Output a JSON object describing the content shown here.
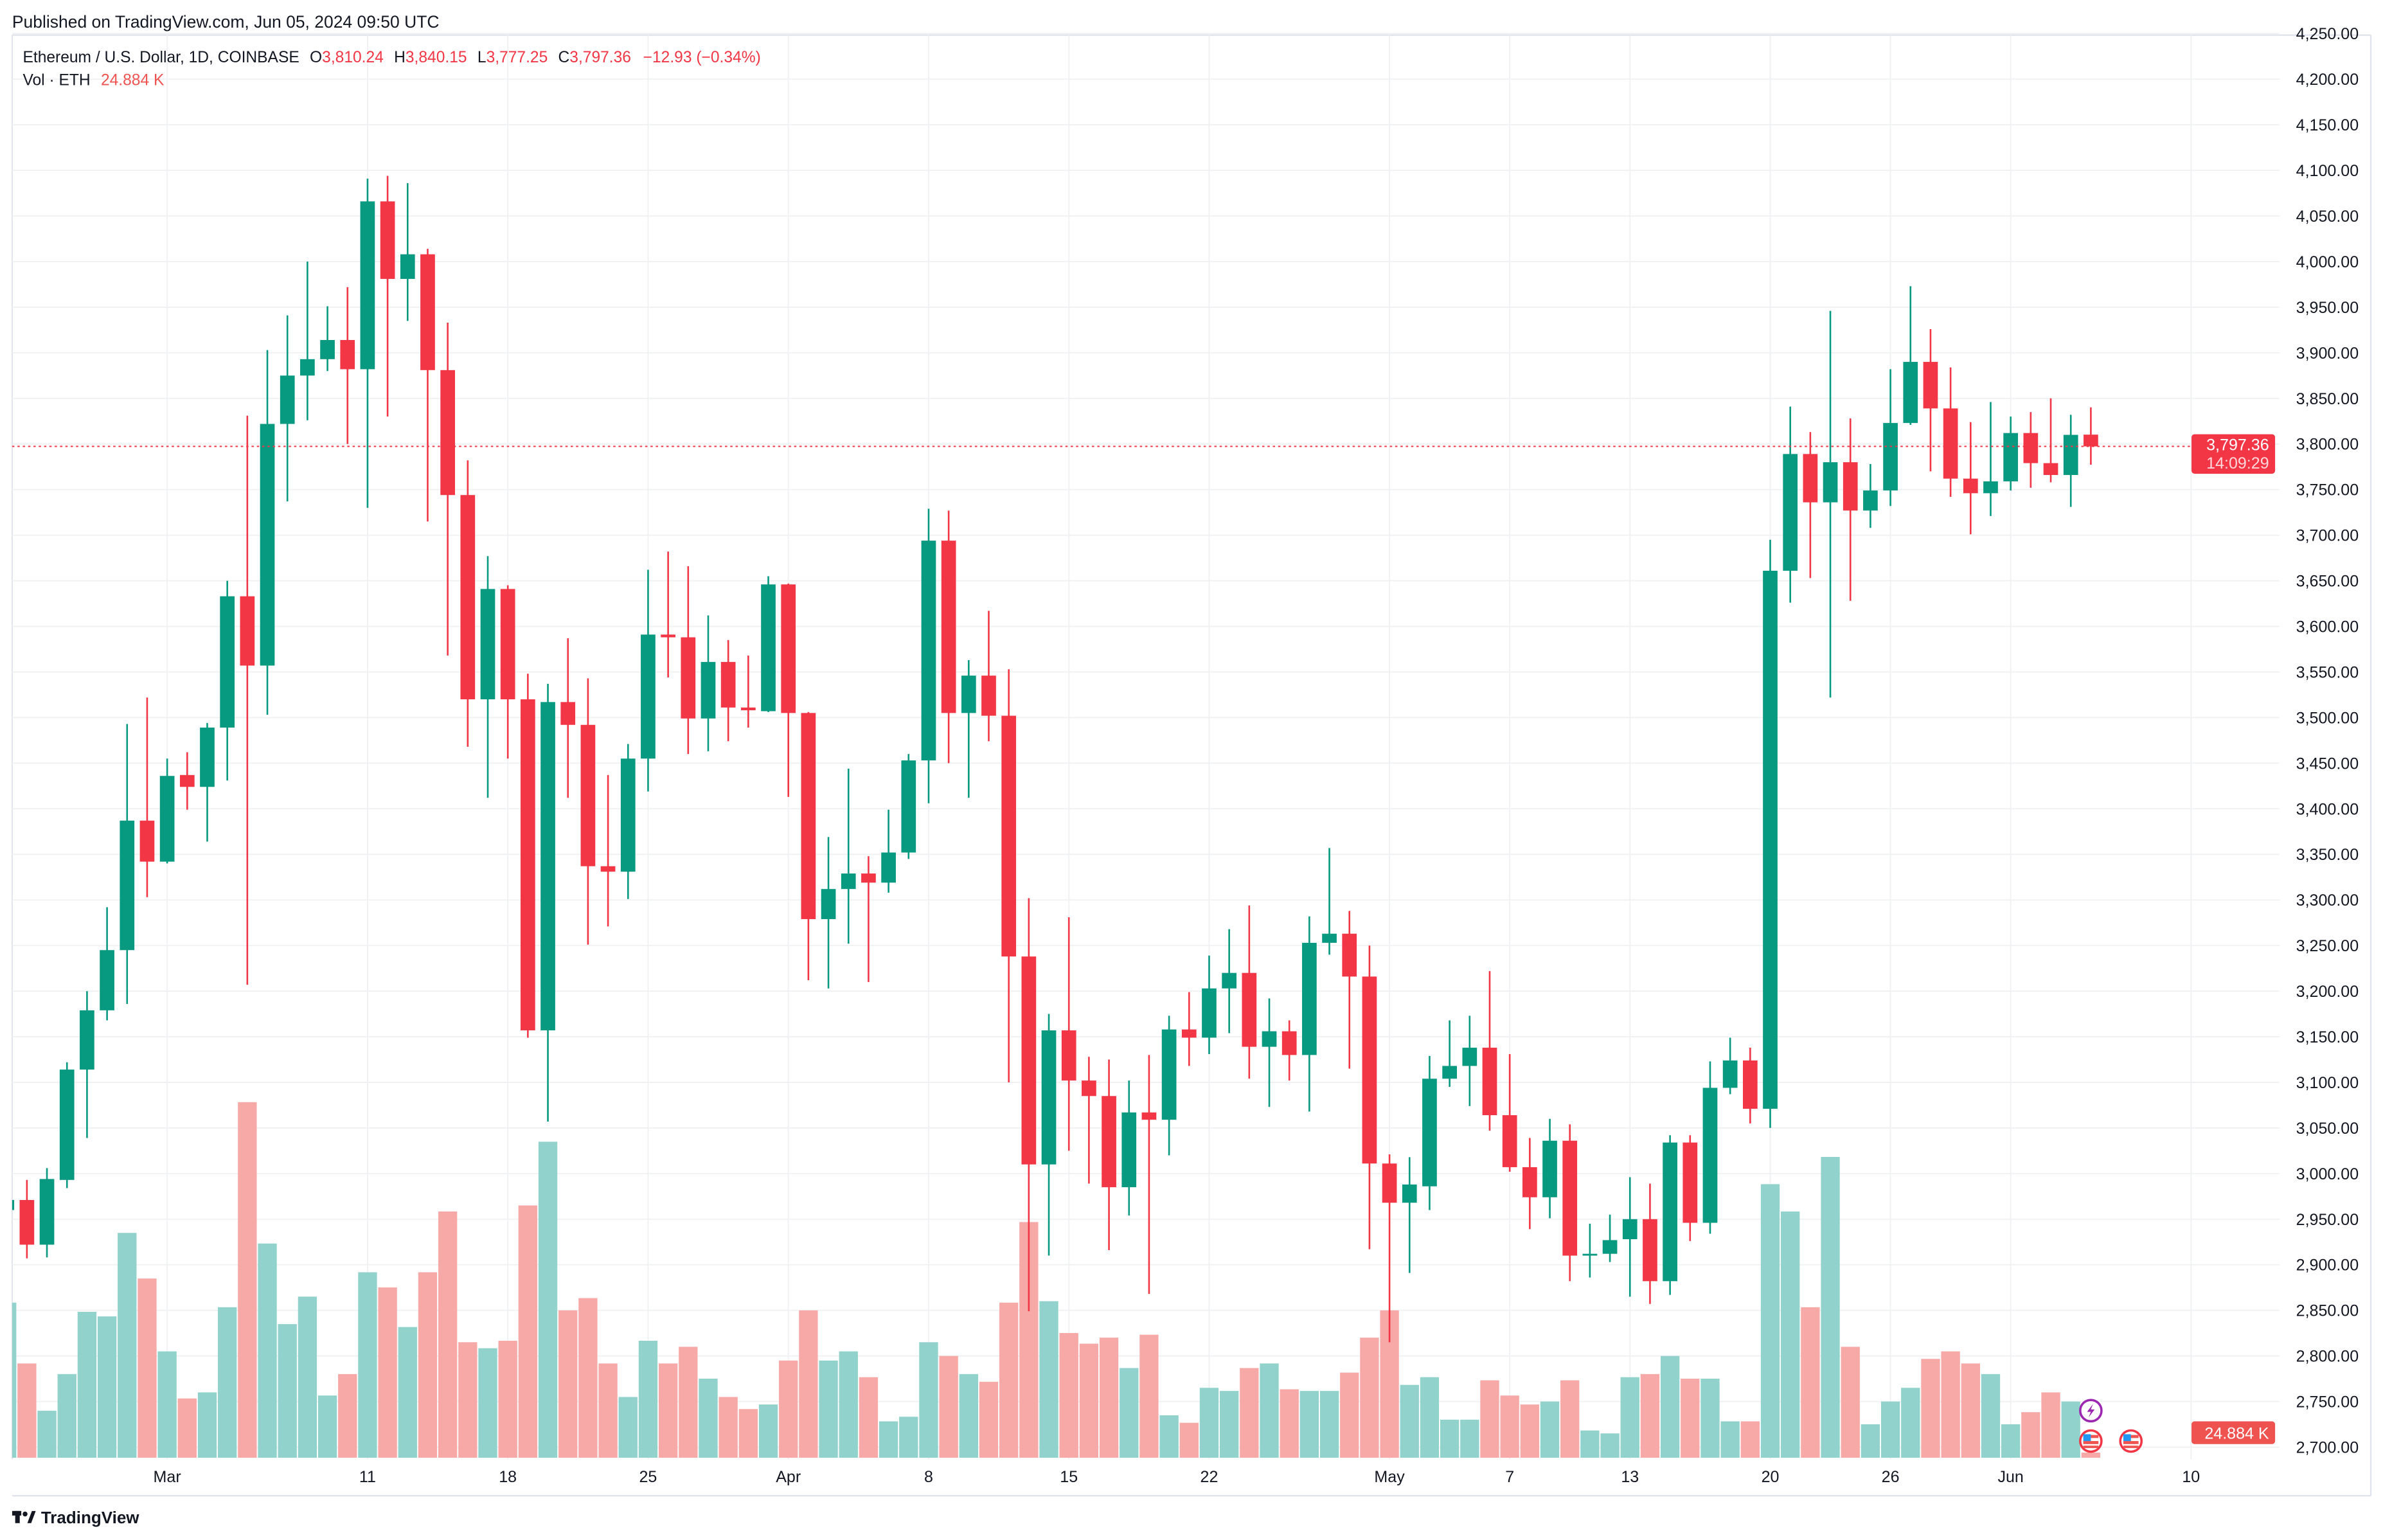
{
  "header": {
    "published": "Published on TradingView.com, Jun 05, 2024 09:50 UTC"
  },
  "legend": {
    "symbol": "Ethereum / U.S. Dollar, 1D, COINBASE",
    "o_label": "O",
    "o_value": "3,810.24",
    "h_label": "H",
    "h_value": "3,840.15",
    "l_label": "L",
    "l_value": "3,777.25",
    "c_label": "C",
    "c_value": "3,797.36",
    "change": "−12.93 (−0.34%)",
    "vol_label": "Vol · ETH",
    "vol_value": "24.884 K"
  },
  "price_tag": {
    "price": "3,797.36",
    "countdown": "14:09:29"
  },
  "volume_tag": {
    "value": "24.884 K"
  },
  "footer": {
    "logo_text": "TradingView"
  },
  "colors": {
    "up": "#089981",
    "down": "#f23645",
    "up_volume": "#92d2cc",
    "down_volume": "#f7a9a7",
    "volume_tag": "#ef5350",
    "event_icon": "#9c27b0"
  },
  "events": [
    {
      "icon": "lightning-icon",
      "date": "2024-06-05",
      "row": 0
    },
    {
      "icon": "us-flag-icon",
      "date": "2024-06-05",
      "row": 1
    },
    {
      "icon": "us-flag-icon",
      "date": "2024-06-07",
      "row": 1
    }
  ],
  "chart_data": {
    "type": "candlestick",
    "title": "Ethereum / U.S. Dollar, 1D, COINBASE",
    "ylim": [
      2700,
      4250
    ],
    "grid": true,
    "current_price": 3797.36,
    "y_ticks": [
      "4,250.00",
      "4,200.00",
      "4,150.00",
      "4,100.00",
      "4,050.00",
      "4,000.00",
      "3,950.00",
      "3,900.00",
      "3,850.00",
      "3,800.00",
      "3,750.00",
      "3,700.00",
      "3,650.00",
      "3,600.00",
      "3,550.00",
      "3,500.00",
      "3,450.00",
      "3,400.00",
      "3,350.00",
      "3,300.00",
      "3,250.00",
      "3,200.00",
      "3,150.00",
      "3,100.00",
      "3,050.00",
      "3,000.00",
      "2,950.00",
      "2,900.00",
      "2,850.00",
      "2,800.00",
      "2,750.00",
      "2,700.00"
    ],
    "x_ticks": [
      {
        "label": "Mar",
        "date": "2024-03-01"
      },
      {
        "label": "11",
        "date": "2024-03-11"
      },
      {
        "label": "18",
        "date": "2024-03-18"
      },
      {
        "label": "25",
        "date": "2024-03-25"
      },
      {
        "label": "Apr",
        "date": "2024-04-01"
      },
      {
        "label": "8",
        "date": "2024-04-08"
      },
      {
        "label": "15",
        "date": "2024-04-15"
      },
      {
        "label": "22",
        "date": "2024-04-22"
      },
      {
        "label": "May",
        "date": "2024-05-01"
      },
      {
        "label": "7",
        "date": "2024-05-07"
      },
      {
        "label": "13",
        "date": "2024-05-13"
      },
      {
        "label": "20",
        "date": "2024-05-20"
      },
      {
        "label": "26",
        "date": "2024-05-26"
      },
      {
        "label": "Jun",
        "date": "2024-06-01"
      },
      {
        "label": "10",
        "date": "2024-06-10"
      }
    ],
    "columns": [
      "date",
      "open",
      "high",
      "low",
      "close",
      "volume_k"
    ],
    "candles": [
      [
        "2024-02-22",
        2960,
        2990,
        2935,
        2971,
        745
      ],
      [
        "2024-02-23",
        2971,
        2993,
        2907,
        2922,
        453
      ],
      [
        "2024-02-24",
        2922,
        3006,
        2908,
        2994,
        226
      ],
      [
        "2024-02-25",
        2993,
        3122,
        2984,
        3114,
        402
      ],
      [
        "2024-02-26",
        3114,
        3200,
        3039,
        3179,
        701
      ],
      [
        "2024-02-27",
        3179,
        3292,
        3168,
        3245,
        679
      ],
      [
        "2024-02-28",
        3245,
        3493,
        3186,
        3387,
        1080
      ],
      [
        "2024-02-29",
        3387,
        3522,
        3303,
        3342,
        861
      ],
      [
        "2024-03-01",
        3342,
        3455,
        3340,
        3436,
        511
      ],
      [
        "2024-03-02",
        3437,
        3462,
        3399,
        3424,
        285
      ],
      [
        "2024-03-03",
        3424,
        3494,
        3364,
        3489,
        314
      ],
      [
        "2024-03-04",
        3489,
        3650,
        3431,
        3633,
        723
      ],
      [
        "2024-03-05",
        3633,
        3831,
        3207,
        3557,
        1708
      ],
      [
        "2024-03-06",
        3557,
        3903,
        3503,
        3822,
        1029
      ],
      [
        "2024-03-07",
        3822,
        3941,
        3737,
        3875,
        642
      ],
      [
        "2024-03-08",
        3875,
        4000,
        3826,
        3893,
        774
      ],
      [
        "2024-03-09",
        3893,
        3951,
        3880,
        3914,
        299
      ],
      [
        "2024-03-10",
        3914,
        3972,
        3800,
        3882,
        402
      ],
      [
        "2024-03-11",
        3882,
        4091,
        3730,
        4066,
        891
      ],
      [
        "2024-03-12",
        4066,
        4094,
        3830,
        3981,
        818
      ],
      [
        "2024-03-13",
        3981,
        4086,
        3935,
        4008,
        628
      ],
      [
        "2024-03-14",
        4008,
        4014,
        3715,
        3881,
        891
      ],
      [
        "2024-03-15",
        3881,
        3933,
        3568,
        3744,
        1183
      ],
      [
        "2024-03-16",
        3744,
        3782,
        3468,
        3520,
        555
      ],
      [
        "2024-03-17",
        3520,
        3677,
        3412,
        3641,
        526
      ],
      [
        "2024-03-18",
        3641,
        3645,
        3455,
        3520,
        562
      ],
      [
        "2024-03-19",
        3520,
        3548,
        3149,
        3157,
        1212
      ],
      [
        "2024-03-20",
        3157,
        3537,
        3057,
        3517,
        1518
      ],
      [
        "2024-03-21",
        3517,
        3587,
        3412,
        3492,
        708
      ],
      [
        "2024-03-22",
        3492,
        3543,
        3251,
        3337,
        767
      ],
      [
        "2024-03-23",
        3337,
        3437,
        3271,
        3331,
        453
      ],
      [
        "2024-03-24",
        3331,
        3471,
        3301,
        3455,
        292
      ],
      [
        "2024-03-25",
        3455,
        3662,
        3419,
        3591,
        562
      ],
      [
        "2024-03-26",
        3591,
        3682,
        3544,
        3588,
        453
      ],
      [
        "2024-03-27",
        3588,
        3666,
        3460,
        3499,
        533
      ],
      [
        "2024-03-28",
        3499,
        3612,
        3463,
        3561,
        380
      ],
      [
        "2024-03-29",
        3561,
        3585,
        3474,
        3511,
        292
      ],
      [
        "2024-03-30",
        3511,
        3568,
        3489,
        3508,
        234
      ],
      [
        "2024-03-31",
        3507,
        3655,
        3506,
        3646,
        256
      ],
      [
        "2024-04-01",
        3646,
        3647,
        3413,
        3505,
        467
      ],
      [
        "2024-04-02",
        3505,
        3506,
        3212,
        3279,
        708
      ],
      [
        "2024-04-03",
        3279,
        3369,
        3203,
        3312,
        467
      ],
      [
        "2024-04-04",
        3312,
        3444,
        3252,
        3329,
        511
      ],
      [
        "2024-04-05",
        3329,
        3348,
        3210,
        3319,
        387
      ],
      [
        "2024-04-06",
        3319,
        3399,
        3308,
        3352,
        175
      ],
      [
        "2024-04-07",
        3352,
        3460,
        3345,
        3453,
        197
      ],
      [
        "2024-04-08",
        3453,
        3729,
        3406,
        3694,
        555
      ],
      [
        "2024-04-09",
        3694,
        3727,
        3450,
        3505,
        489
      ],
      [
        "2024-04-10",
        3505,
        3563,
        3412,
        3546,
        402
      ],
      [
        "2024-04-11",
        3546,
        3617,
        3474,
        3502,
        365
      ],
      [
        "2024-04-12",
        3502,
        3553,
        3100,
        3238,
        745
      ],
      [
        "2024-04-13",
        3238,
        3302,
        2849,
        3010,
        1132
      ],
      [
        "2024-04-14",
        3010,
        3175,
        2910,
        3157,
        752
      ],
      [
        "2024-04-15",
        3157,
        3281,
        3025,
        3102,
        599
      ],
      [
        "2024-04-16",
        3102,
        3128,
        2989,
        3085,
        548
      ],
      [
        "2024-04-17",
        3085,
        3125,
        2916,
        2985,
        577
      ],
      [
        "2024-04-18",
        2985,
        3102,
        2954,
        3067,
        431
      ],
      [
        "2024-04-19",
        3067,
        3130,
        2868,
        3059,
        591
      ],
      [
        "2024-04-20",
        3059,
        3173,
        3020,
        3158,
        204
      ],
      [
        "2024-04-21",
        3158,
        3199,
        3118,
        3149,
        168
      ],
      [
        "2024-04-22",
        3149,
        3239,
        3131,
        3203,
        336
      ],
      [
        "2024-04-23",
        3203,
        3268,
        3154,
        3220,
        321
      ],
      [
        "2024-04-24",
        3220,
        3294,
        3104,
        3139,
        431
      ],
      [
        "2024-04-25",
        3139,
        3192,
        3073,
        3156,
        453
      ],
      [
        "2024-04-26",
        3156,
        3168,
        3102,
        3130,
        329
      ],
      [
        "2024-04-27",
        3130,
        3282,
        3068,
        3253,
        321
      ],
      [
        "2024-04-28",
        3253,
        3357,
        3240,
        3263,
        321
      ],
      [
        "2024-04-29",
        3263,
        3288,
        3115,
        3216,
        409
      ],
      [
        "2024-04-30",
        3216,
        3250,
        2917,
        3011,
        577
      ],
      [
        "2024-05-01",
        3011,
        3021,
        2815,
        2968,
        708
      ],
      [
        "2024-05-02",
        2968,
        3018,
        2891,
        2988,
        350
      ],
      [
        "2024-05-03",
        2986,
        3129,
        2960,
        3104,
        387
      ],
      [
        "2024-05-04",
        3104,
        3168,
        3095,
        3118,
        183
      ],
      [
        "2024-05-05",
        3118,
        3173,
        3074,
        3138,
        183
      ],
      [
        "2024-05-06",
        3138,
        3222,
        3047,
        3064,
        372
      ],
      [
        "2024-05-07",
        3064,
        3131,
        3002,
        3007,
        299
      ],
      [
        "2024-05-08",
        3007,
        3039,
        2939,
        2974,
        256
      ],
      [
        "2024-05-09",
        2974,
        3060,
        2951,
        3036,
        270
      ],
      [
        "2024-05-10",
        3036,
        3054,
        2882,
        2910,
        372
      ],
      [
        "2024-05-11",
        2910,
        2945,
        2886,
        2912,
        131
      ],
      [
        "2024-05-12",
        2912,
        2955,
        2903,
        2927,
        117
      ],
      [
        "2024-05-13",
        2928,
        2996,
        2865,
        2950,
        387
      ],
      [
        "2024-05-14",
        2950,
        2989,
        2857,
        2882,
        402
      ],
      [
        "2024-05-15",
        2882,
        3042,
        2867,
        3034,
        489
      ],
      [
        "2024-05-16",
        3034,
        3042,
        2926,
        2946,
        380
      ],
      [
        "2024-05-17",
        2946,
        3123,
        2934,
        3094,
        380
      ],
      [
        "2024-05-18",
        3094,
        3149,
        3087,
        3124,
        175
      ],
      [
        "2024-05-19",
        3124,
        3138,
        3055,
        3071,
        175
      ],
      [
        "2024-05-20",
        3071,
        3695,
        3050,
        3661,
        1314
      ],
      [
        "2024-05-21",
        3661,
        3841,
        3626,
        3789,
        1183
      ],
      [
        "2024-05-22",
        3789,
        3813,
        3653,
        3736,
        723
      ],
      [
        "2024-05-23",
        3736,
        3946,
        3522,
        3780,
        1445
      ],
      [
        "2024-05-24",
        3780,
        3828,
        3628,
        3727,
        533
      ],
      [
        "2024-05-25",
        3727,
        3778,
        3708,
        3749,
        161
      ],
      [
        "2024-05-26",
        3749,
        3882,
        3732,
        3823,
        270
      ],
      [
        "2024-05-27",
        3823,
        3973,
        3821,
        3890,
        336
      ],
      [
        "2024-05-28",
        3890,
        3926,
        3770,
        3839,
        475
      ],
      [
        "2024-05-29",
        3839,
        3884,
        3742,
        3762,
        511
      ],
      [
        "2024-05-30",
        3762,
        3824,
        3701,
        3746,
        453
      ],
      [
        "2024-05-31",
        3746,
        3846,
        3721,
        3759,
        402
      ],
      [
        "2024-06-01",
        3759,
        3830,
        3749,
        3812,
        161
      ],
      [
        "2024-06-02",
        3812,
        3835,
        3752,
        3779,
        219
      ],
      [
        "2024-06-03",
        3779,
        3850,
        3758,
        3766,
        314
      ],
      [
        "2024-06-04",
        3766,
        3832,
        3731,
        3810,
        270
      ],
      [
        "2024-06-05",
        3810.24,
        3840.15,
        3777.25,
        3797.36,
        24.884
      ]
    ]
  }
}
